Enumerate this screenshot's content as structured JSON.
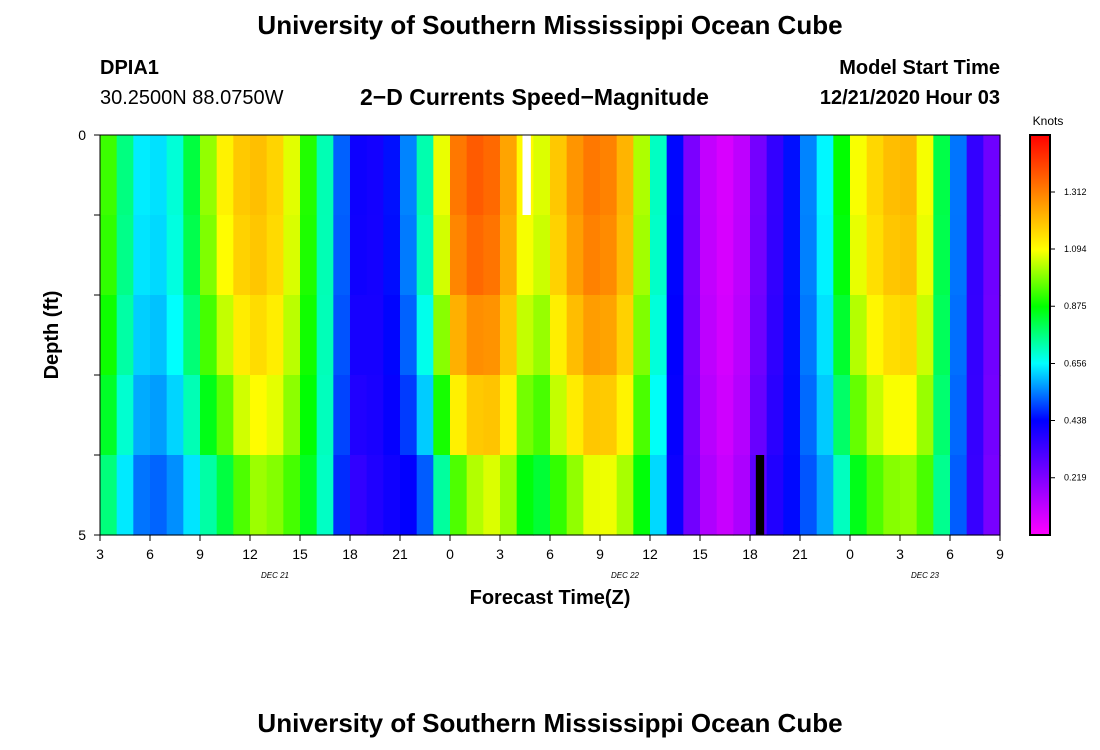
{
  "header": {
    "title": "University of Southern Mississippi Ocean Cube",
    "station": "DPIA1",
    "coords": "30.2500N 88.0750W",
    "subtitle": "2−D Currents Speed−Magnitude",
    "model_start_label": "Model Start Time",
    "model_start_value": "12/21/2020 Hour 03"
  },
  "footer": {
    "title": "University of Southern Mississippi Ocean Cube"
  },
  "chart_data": {
    "type": "heatmap",
    "title": "2−D Currents Speed−Magnitude",
    "xlabel": "Forecast Time(Z)",
    "ylabel": "Depth (ft)",
    "x_tick_labels": [
      "3",
      "6",
      "9",
      "12",
      "15",
      "18",
      "21",
      "0",
      "3",
      "6",
      "9",
      "12",
      "15",
      "18",
      "21",
      "0",
      "3",
      "6",
      "9"
    ],
    "day_labels": [
      {
        "label": "DEC 21",
        "tick_index": 3
      },
      {
        "label": "DEC 22",
        "tick_index": 10
      },
      {
        "label": "DEC 23",
        "tick_index": 16
      }
    ],
    "y_tick_labels": [
      "0",
      "5"
    ],
    "ylim": [
      0,
      5
    ],
    "x_range_hours": [
      0,
      54
    ],
    "depth_levels": 5,
    "colorbar": {
      "units": "Knots",
      "range": [
        0,
        1.53
      ],
      "tick_values": [
        "1.312",
        "1.094",
        "0.875",
        "0.656",
        "0.438",
        "0.219"
      ],
      "color_stops": [
        "#ff00ff",
        "#8000ff",
        "#0000ff",
        "#00ffff",
        "#00ff00",
        "#ffff00",
        "#ff8000",
        "#ff0000"
      ]
    },
    "surface_speed_profile": [
      {
        "hour": 0,
        "value": 1.0
      },
      {
        "hour": 1,
        "value": 0.85
      },
      {
        "hour": 2,
        "value": 0.68
      },
      {
        "hour": 3,
        "value": 0.6
      },
      {
        "hour": 5,
        "value": 0.72
      },
      {
        "hour": 6,
        "value": 0.92
      },
      {
        "hour": 7,
        "value": 1.08
      },
      {
        "hour": 9,
        "value": 1.22
      },
      {
        "hour": 11,
        "value": 1.15
      },
      {
        "hour": 13,
        "value": 0.82
      },
      {
        "hour": 15,
        "value": 0.42
      },
      {
        "hour": 17,
        "value": 0.4
      },
      {
        "hour": 19,
        "value": 0.6
      },
      {
        "hour": 20,
        "value": 0.85
      },
      {
        "hour": 21,
        "value": 1.3
      },
      {
        "hour": 23,
        "value": 1.4
      },
      {
        "hour": 25,
        "value": 1.2
      },
      {
        "hour": 26,
        "value": 1.0
      },
      {
        "hour": 28,
        "value": 1.25
      },
      {
        "hour": 30,
        "value": 1.35
      },
      {
        "hour": 32,
        "value": 1.18
      },
      {
        "hour": 34,
        "value": 0.55
      },
      {
        "hour": 36,
        "value": 0.12
      },
      {
        "hour": 38,
        "value": 0.05
      },
      {
        "hour": 40,
        "value": 0.3
      },
      {
        "hour": 42,
        "value": 0.5
      },
      {
        "hour": 44,
        "value": 0.7
      },
      {
        "hour": 45,
        "value": 1.05
      },
      {
        "hour": 47,
        "value": 1.2
      },
      {
        "hour": 49,
        "value": 1.22
      },
      {
        "hour": 50,
        "value": 0.95
      },
      {
        "hour": 52,
        "value": 0.4
      },
      {
        "hour": 54,
        "value": 0.2
      }
    ],
    "bottom_speed_profile": [
      {
        "hour": 0,
        "value": 0.65
      },
      {
        "hour": 2,
        "value": 0.45
      },
      {
        "hour": 3,
        "value": 0.4
      },
      {
        "hour": 7,
        "value": 0.45
      },
      {
        "hour": 8,
        "value": 0.55
      },
      {
        "hour": 9,
        "value": 0.8
      },
      {
        "hour": 13,
        "value": 0.78
      },
      {
        "hour": 14,
        "value": 0.6
      },
      {
        "hour": 15,
        "value": 0.25
      },
      {
        "hour": 17,
        "value": 0.4
      },
      {
        "hour": 19,
        "value": 0.28
      },
      {
        "hour": 20,
        "value": 0.3
      },
      {
        "hour": 21,
        "value": 0.45
      },
      {
        "hour": 22,
        "value": 0.6
      },
      {
        "hour": 24,
        "value": 0.8
      },
      {
        "hour": 26,
        "value": 0.55
      },
      {
        "hour": 28,
        "value": 0.65
      },
      {
        "hour": 30,
        "value": 0.85
      },
      {
        "hour": 32,
        "value": 0.78
      },
      {
        "hour": 34,
        "value": 0.45
      },
      {
        "hour": 36,
        "value": 0.2
      },
      {
        "hour": 38,
        "value": 0.1
      },
      {
        "hour": 40,
        "value": 0.4
      },
      {
        "hour": 42,
        "value": 0.45
      },
      {
        "hour": 45,
        "value": 0.55
      },
      {
        "hour": 47,
        "value": 0.75
      },
      {
        "hour": 50,
        "value": 0.78
      },
      {
        "hour": 52,
        "value": 0.4
      },
      {
        "hour": 54,
        "value": 0.15
      }
    ],
    "depth_weights": [
      1.0,
      0.97,
      0.88,
      0.74,
      0.52
    ],
    "missing_cells": [
      {
        "label": "missing-surface",
        "hour": 25,
        "depth_level": 0,
        "color": "#ffffff"
      },
      {
        "label": "missing-bottom",
        "hour": 39,
        "depth_level": 4,
        "color": "#000000"
      }
    ]
  }
}
